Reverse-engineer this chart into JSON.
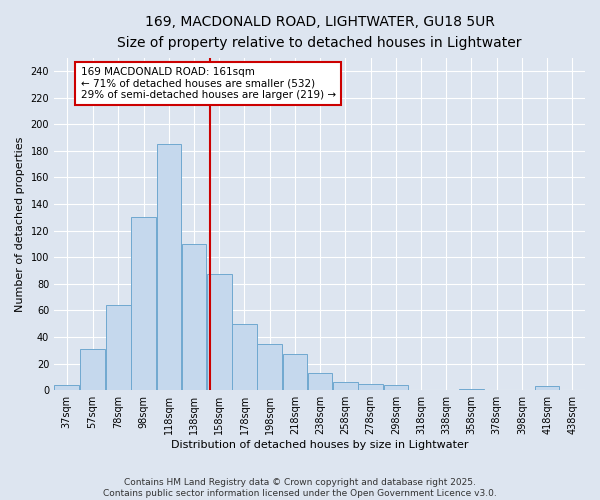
{
  "title": "169, MACDONALD ROAD, LIGHTWATER, GU18 5UR",
  "subtitle": "Size of property relative to detached houses in Lightwater",
  "xlabel": "Distribution of detached houses by size in Lightwater",
  "ylabel": "Number of detached properties",
  "footer_line1": "Contains HM Land Registry data © Crown copyright and database right 2025.",
  "footer_line2": "Contains public sector information licensed under the Open Government Licence v3.0.",
  "annotation_line1": "169 MACDONALD ROAD: 161sqm",
  "annotation_line2": "← 71% of detached houses are smaller (532)",
  "annotation_line3": "29% of semi-detached houses are larger (219) →",
  "vline_x": 161,
  "categories": [
    "37sqm",
    "57sqm",
    "78sqm",
    "98sqm",
    "118sqm",
    "138sqm",
    "158sqm",
    "178sqm",
    "198sqm",
    "218sqm",
    "238sqm",
    "258sqm",
    "278sqm",
    "298sqm",
    "318sqm",
    "338sqm",
    "358sqm",
    "378sqm",
    "398sqm",
    "418sqm",
    "438sqm"
  ],
  "bar_left_edges": [
    37,
    57,
    78,
    98,
    118,
    138,
    158,
    178,
    198,
    218,
    238,
    258,
    278,
    298,
    318,
    338,
    358,
    378,
    398,
    418,
    438
  ],
  "bar_widths": [
    20,
    21,
    20,
    20,
    20,
    20,
    20,
    20,
    20,
    20,
    20,
    20,
    20,
    20,
    20,
    20,
    20,
    20,
    20,
    20,
    20
  ],
  "bar_heights": [
    4,
    31,
    64,
    130,
    185,
    110,
    87,
    50,
    35,
    27,
    13,
    6,
    5,
    4,
    0,
    0,
    1,
    0,
    0,
    3,
    0
  ],
  "bar_color": "#c5d8ed",
  "bar_edge_color": "#6fa8d0",
  "vline_color": "#cc0000",
  "annotation_box_edge_color": "#cc0000",
  "annotation_box_face_color": "#ffffff",
  "background_color": "#dde5f0",
  "grid_color": "#ffffff",
  "ylim": [
    0,
    250
  ],
  "xlim": [
    37,
    458
  ],
  "yticks": [
    0,
    20,
    40,
    60,
    80,
    100,
    120,
    140,
    160,
    180,
    200,
    220,
    240
  ],
  "title_fontsize": 10,
  "subtitle_fontsize": 9,
  "axis_label_fontsize": 8,
  "tick_fontsize": 7,
  "annotation_fontsize": 7.5,
  "footer_fontsize": 6.5
}
